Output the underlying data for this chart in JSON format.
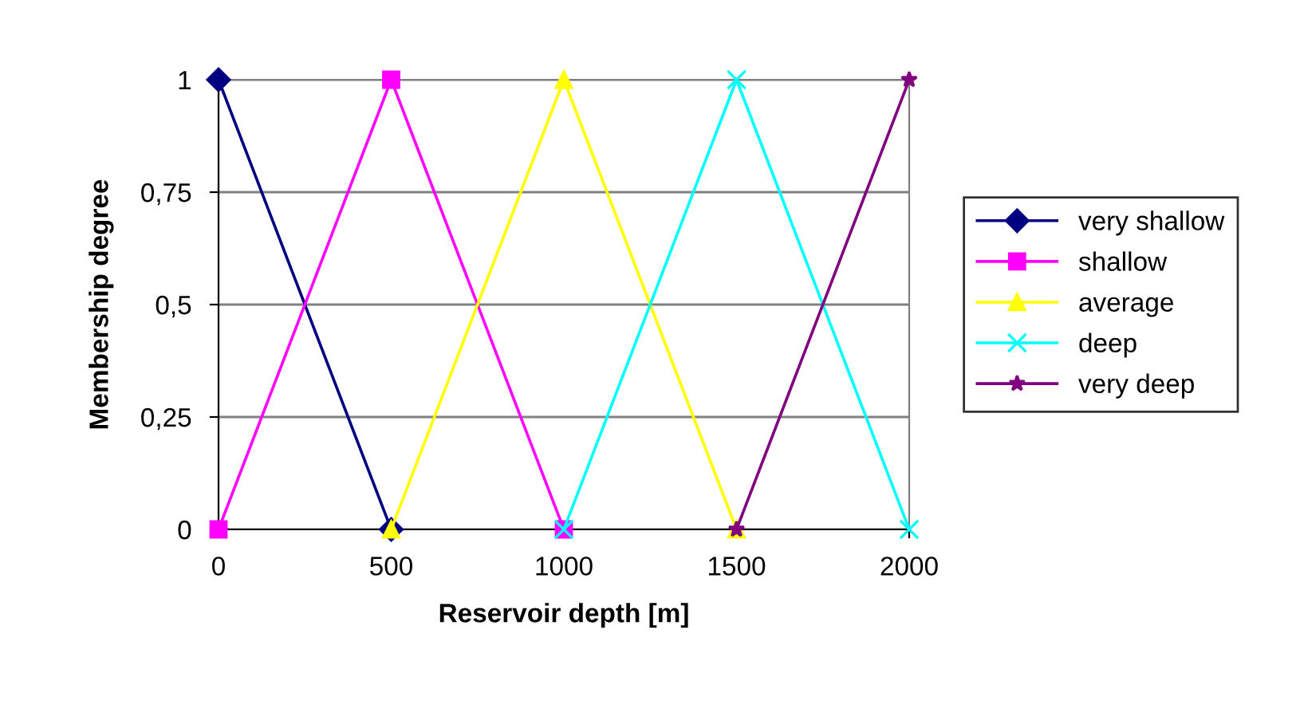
{
  "chart_data": {
    "type": "line",
    "xlabel": "Reservoir depth [m]",
    "ylabel": "Membership degree",
    "xlim": [
      0,
      2000
    ],
    "xticks": [
      0,
      500,
      1000,
      1500,
      2000
    ],
    "ylim": [
      0,
      1
    ],
    "yticks": [
      {
        "value": 0,
        "label": "0"
      },
      {
        "value": 0.25,
        "label": "0,25"
      },
      {
        "value": 0.5,
        "label": "0,5"
      },
      {
        "value": 0.75,
        "label": "0,75"
      },
      {
        "value": 1,
        "label": "1"
      }
    ],
    "grid": "y",
    "legend": "right",
    "line_style": "solid",
    "series": [
      {
        "name": "very shallow",
        "color": "#000080",
        "marker": "diamond",
        "x": [
          0,
          500
        ],
        "values": [
          1,
          0
        ]
      },
      {
        "name": "shallow",
        "color": "#ff00ff",
        "marker": "square",
        "x": [
          0,
          500,
          1000
        ],
        "values": [
          0,
          1,
          0
        ]
      },
      {
        "name": "average",
        "color": "#ffff00",
        "marker": "triangle",
        "x": [
          500,
          1000,
          1500
        ],
        "values": [
          0,
          1,
          0
        ]
      },
      {
        "name": "deep",
        "color": "#00ffff",
        "marker": "cross",
        "x": [
          1000,
          1500,
          2000
        ],
        "values": [
          0,
          1,
          0
        ]
      },
      {
        "name": "very deep",
        "color": "#800080",
        "marker": "star",
        "x": [
          1500,
          2000
        ],
        "values": [
          0,
          1
        ]
      }
    ]
  }
}
